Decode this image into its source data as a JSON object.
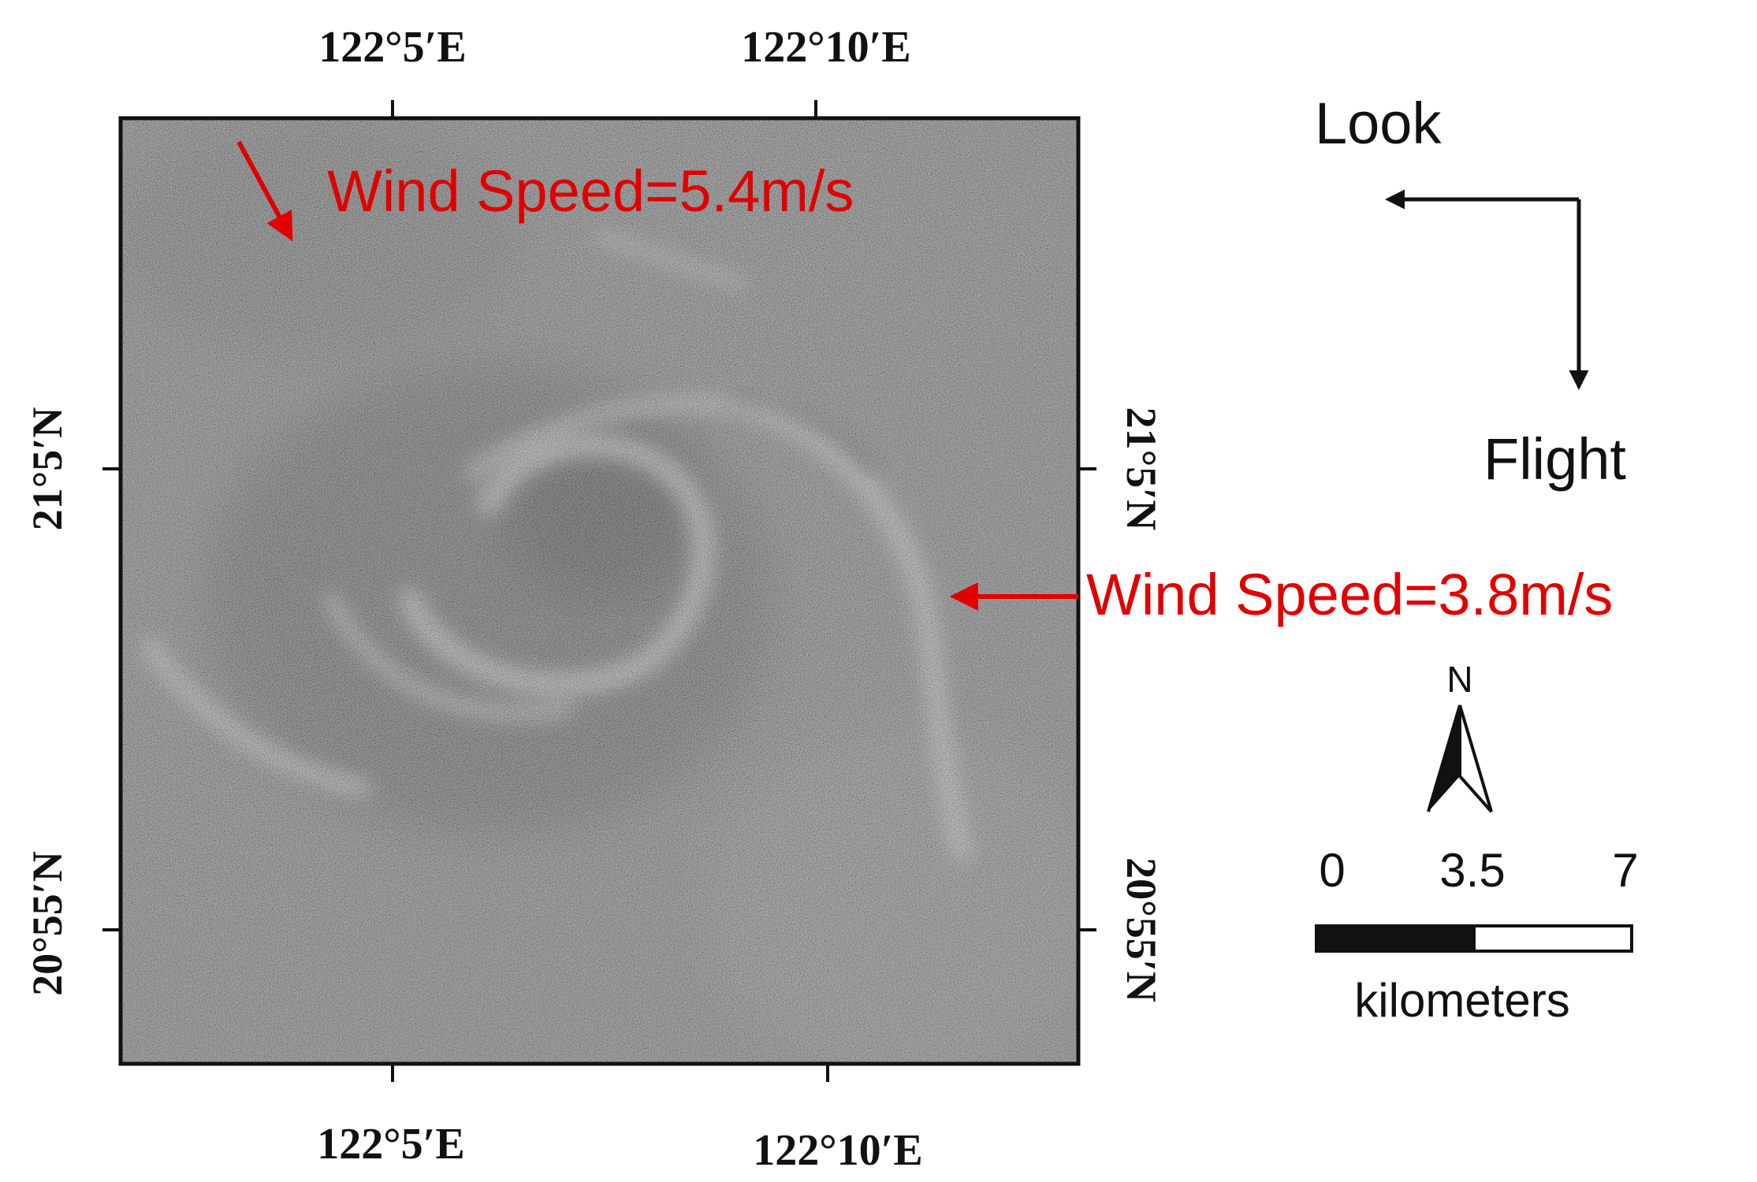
{
  "map": {
    "longitude_labels": [
      "122°5′E",
      "122°10′E"
    ],
    "latitude_labels": [
      "21°5′N",
      "20°55′N"
    ]
  },
  "annotations": [
    {
      "text": "Wind Speed=5.4m/s",
      "color": "#e00000"
    },
    {
      "text": "Wind Speed=3.8m/s",
      "color": "#e00000"
    }
  ],
  "direction_legend": {
    "look_label": "Look",
    "flight_label": "Flight"
  },
  "north_arrow": {
    "label": "N",
    "icon": "north-arrow-icon"
  },
  "scale_bar": {
    "ticks": [
      "0",
      "3.5",
      "7"
    ],
    "unit": "kilometers"
  },
  "colors": {
    "annotation": "#e00000",
    "frame": "#111111",
    "sar_background": "#6e6e6e"
  }
}
